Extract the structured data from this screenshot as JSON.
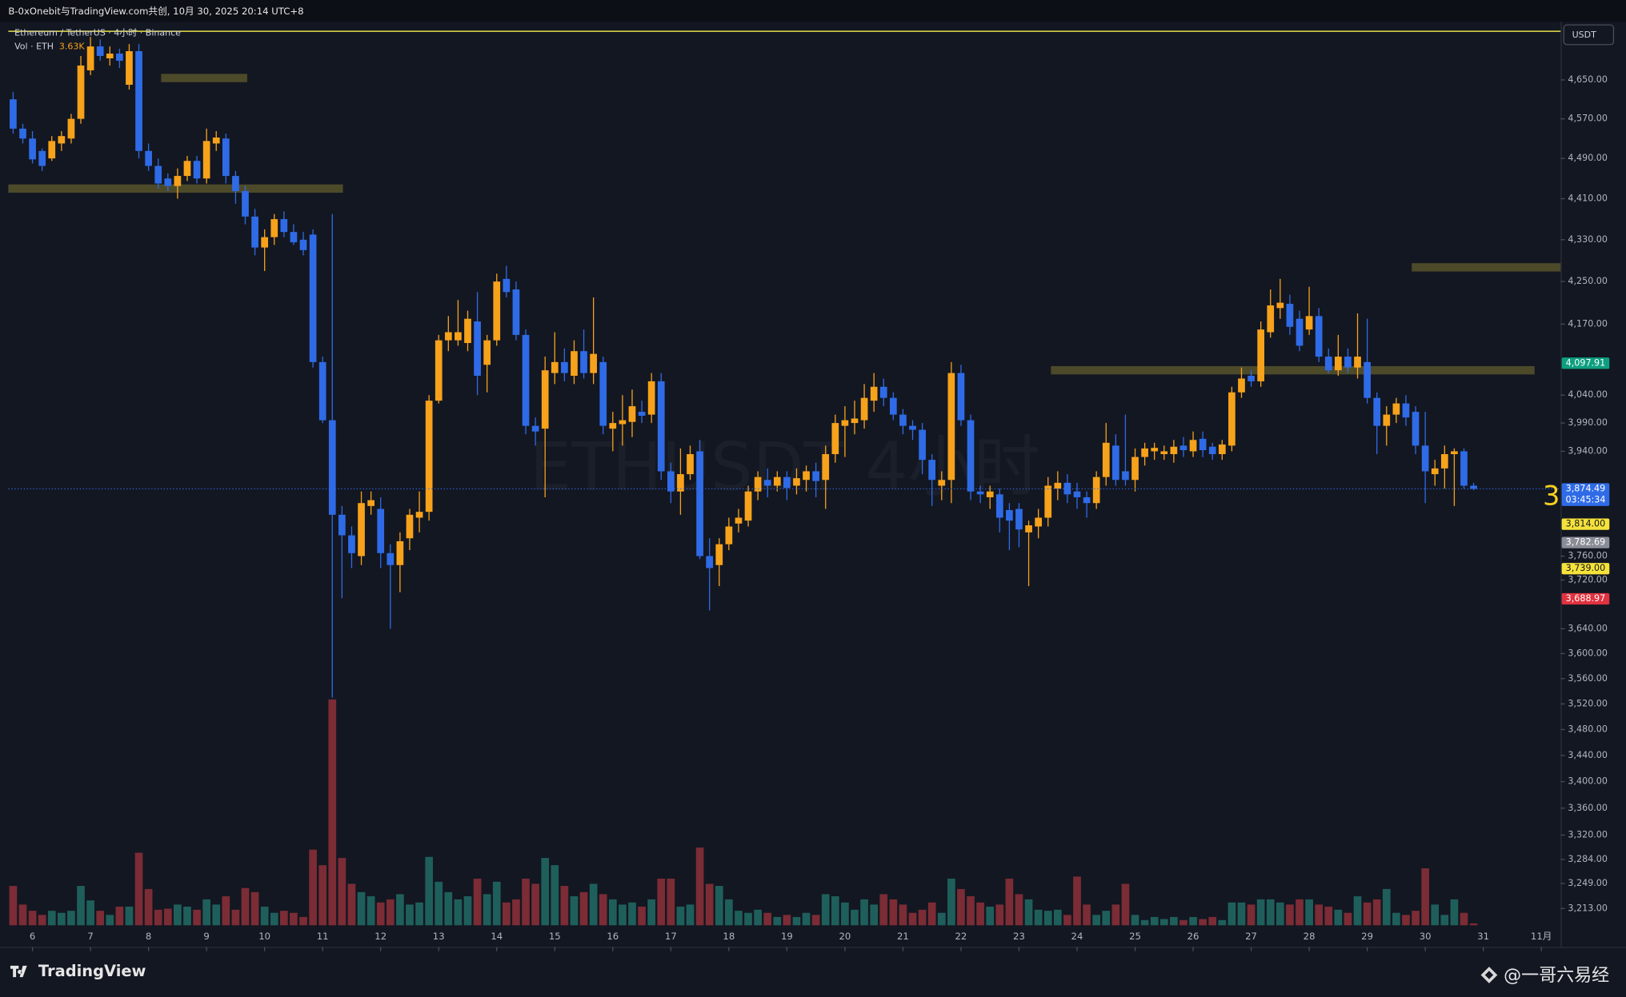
{
  "header": "B-0xOnebit与TradingView.com共创, 10月 30, 2025 20:14 UTC+8",
  "footer": {
    "brand": "TradingView",
    "watermark": "@一哥六易经"
  },
  "chart_data": {
    "type": "candlestick",
    "title": "Ethereum / TetherUS · 4小时 · Binance",
    "symbol_watermark": "ETHUSDT 4小时",
    "currency": "USDT",
    "marker_text": "3",
    "log_scale": true,
    "grid": false,
    "up_color": "#f7a21b",
    "down_color": "#2f6be6",
    "ylim": [
      3189,
      4770
    ],
    "xlim": [
      -0.5,
      160
    ],
    "yticks": [
      {
        "value": 4650,
        "label": "4,650.00"
      },
      {
        "value": 4570,
        "label": "4,570.00"
      },
      {
        "value": 4490,
        "label": "4,490.00"
      },
      {
        "value": 4410,
        "label": "4,410.00"
      },
      {
        "value": 4330,
        "label": "4,330.00"
      },
      {
        "value": 4250,
        "label": "4,250.00"
      },
      {
        "value": 4170,
        "label": "4,170.00"
      },
      {
        "value": 4040,
        "label": "4,040.00"
      },
      {
        "value": 3990,
        "label": "3,990.00"
      },
      {
        "value": 3940,
        "label": "3,940.00"
      },
      {
        "value": 3760,
        "label": "3,760.00"
      },
      {
        "value": 3720,
        "label": "3,720.00"
      },
      {
        "value": 3640,
        "label": "3,640.00"
      },
      {
        "value": 3600,
        "label": "3,600.00"
      },
      {
        "value": 3560,
        "label": "3,560.00"
      },
      {
        "value": 3520,
        "label": "3,520.00"
      },
      {
        "value": 3480,
        "label": "3,480.00"
      },
      {
        "value": 3440,
        "label": "3,440.00"
      },
      {
        "value": 3400,
        "label": "3,400.00"
      },
      {
        "value": 3360,
        "label": "3,360.00"
      },
      {
        "value": 3320,
        "label": "3,320.00"
      },
      {
        "value": 3284,
        "label": "3,284.00"
      },
      {
        "value": 3249,
        "label": "3,249.00"
      },
      {
        "value": 3213,
        "label": "3,213.00"
      }
    ],
    "xticks": [
      {
        "value": 2,
        "label": "6"
      },
      {
        "value": 8,
        "label": "7"
      },
      {
        "value": 14,
        "label": "8"
      },
      {
        "value": 20,
        "label": "9"
      },
      {
        "value": 26,
        "label": "10"
      },
      {
        "value": 32,
        "label": "11"
      },
      {
        "value": 38,
        "label": "12"
      },
      {
        "value": 44,
        "label": "13"
      },
      {
        "value": 50,
        "label": "14"
      },
      {
        "value": 56,
        "label": "15"
      },
      {
        "value": 62,
        "label": "16"
      },
      {
        "value": 68,
        "label": "17"
      },
      {
        "value": 74,
        "label": "18"
      },
      {
        "value": 80,
        "label": "19"
      },
      {
        "value": 86,
        "label": "20"
      },
      {
        "value": 92,
        "label": "21"
      },
      {
        "value": 98,
        "label": "22"
      },
      {
        "value": 104,
        "label": "23"
      },
      {
        "value": 110,
        "label": "24"
      },
      {
        "value": 116,
        "label": "25"
      },
      {
        "value": 122,
        "label": "26"
      },
      {
        "value": 128,
        "label": "27"
      },
      {
        "value": 134,
        "label": "28"
      },
      {
        "value": 140,
        "label": "29"
      },
      {
        "value": 146,
        "label": "30"
      },
      {
        "value": 152,
        "label": "31"
      },
      {
        "value": 158,
        "label": "11月"
      }
    ],
    "candles": [
      [
        4610,
        4625,
        4540,
        4550
      ],
      [
        4550,
        4560,
        4520,
        4530
      ],
      [
        4530,
        4545,
        4480,
        4488
      ],
      [
        4505,
        4510,
        4465,
        4475
      ],
      [
        4490,
        4535,
        4485,
        4525
      ],
      [
        4520,
        4545,
        4505,
        4535
      ],
      [
        4530,
        4580,
        4520,
        4570
      ],
      [
        4570,
        4700,
        4560,
        4680
      ],
      [
        4670,
        4740,
        4660,
        4720
      ],
      [
        4720,
        4735,
        4690,
        4700
      ],
      [
        4695,
        4720,
        4680,
        4705
      ],
      [
        4705,
        4715,
        4675,
        4690
      ],
      [
        4640,
        4725,
        4630,
        4710
      ],
      [
        4710,
        4725,
        4490,
        4505
      ],
      [
        4505,
        4520,
        4465,
        4475
      ],
      [
        4475,
        4490,
        4430,
        4440
      ],
      [
        4450,
        4460,
        4425,
        4435
      ],
      [
        4435,
        4470,
        4410,
        4455
      ],
      [
        4455,
        4495,
        4445,
        4485
      ],
      [
        4485,
        4495,
        4440,
        4450
      ],
      [
        4450,
        4550,
        4440,
        4525
      ],
      [
        4520,
        4545,
        4505,
        4532
      ],
      [
        4530,
        4540,
        4440,
        4455
      ],
      [
        4455,
        4465,
        4400,
        4425
      ],
      [
        4425,
        4435,
        4360,
        4375
      ],
      [
        4375,
        4390,
        4300,
        4315
      ],
      [
        4315,
        4350,
        4270,
        4335
      ],
      [
        4335,
        4380,
        4320,
        4370
      ],
      [
        4370,
        4385,
        4335,
        4345
      ],
      [
        4345,
        4360,
        4320,
        4325
      ],
      [
        4330,
        4345,
        4300,
        4310
      ],
      [
        4340,
        4350,
        4090,
        4100
      ],
      [
        4100,
        4110,
        3990,
        3995
      ],
      [
        3995,
        4380,
        3530,
        3830
      ],
      [
        3830,
        3845,
        3690,
        3795
      ],
      [
        3795,
        3810,
        3740,
        3765
      ],
      [
        3760,
        3870,
        3745,
        3850
      ],
      [
        3845,
        3870,
        3830,
        3855
      ],
      [
        3840,
        3860,
        3740,
        3765
      ],
      [
        3765,
        3780,
        3640,
        3745
      ],
      [
        3745,
        3800,
        3700,
        3785
      ],
      [
        3790,
        3840,
        3770,
        3830
      ],
      [
        3825,
        3870,
        3800,
        3835
      ],
      [
        3835,
        4040,
        3820,
        4030
      ],
      [
        4030,
        4150,
        4025,
        4140
      ],
      [
        4140,
        4185,
        4120,
        4155
      ],
      [
        4140,
        4215,
        4130,
        4155
      ],
      [
        4135,
        4195,
        4120,
        4180
      ],
      [
        4175,
        4230,
        4040,
        4075
      ],
      [
        4095,
        4150,
        4045,
        4140
      ],
      [
        4140,
        4265,
        4130,
        4250
      ],
      [
        4255,
        4280,
        4220,
        4230
      ],
      [
        4235,
        4250,
        4140,
        4150
      ],
      [
        4150,
        4160,
        3970,
        3985
      ],
      [
        3985,
        4000,
        3950,
        3975
      ],
      [
        3980,
        4110,
        3860,
        4085
      ],
      [
        4080,
        4155,
        4060,
        4100
      ],
      [
        4100,
        4125,
        4065,
        4080
      ],
      [
        4075,
        4140,
        4060,
        4120
      ],
      [
        4120,
        4160,
        4070,
        4080
      ],
      [
        4080,
        4220,
        4060,
        4115
      ],
      [
        4100,
        4110,
        3970,
        3985
      ],
      [
        3980,
        4010,
        3940,
        3990
      ],
      [
        3988,
        4040,
        3950,
        3995
      ],
      [
        3992,
        4050,
        3965,
        4020
      ],
      [
        4010,
        4030,
        3990,
        4003
      ],
      [
        4005,
        4080,
        3990,
        4065
      ],
      [
        4065,
        4080,
        3890,
        3905
      ],
      [
        3905,
        3920,
        3850,
        3870
      ],
      [
        3870,
        3945,
        3830,
        3900
      ],
      [
        3900,
        3950,
        3890,
        3935
      ],
      [
        3940,
        3960,
        3755,
        3760
      ],
      [
        3760,
        3790,
        3670,
        3740
      ],
      [
        3745,
        3790,
        3710,
        3780
      ],
      [
        3780,
        3825,
        3770,
        3810
      ],
      [
        3815,
        3840,
        3800,
        3825
      ],
      [
        3820,
        3880,
        3810,
        3870
      ],
      [
        3870,
        3905,
        3855,
        3895
      ],
      [
        3890,
        3910,
        3860,
        3880
      ],
      [
        3880,
        3905,
        3870,
        3895
      ],
      [
        3895,
        3905,
        3855,
        3876
      ],
      [
        3880,
        3910,
        3865,
        3893
      ],
      [
        3890,
        3915,
        3870,
        3905
      ],
      [
        3905,
        3920,
        3860,
        3888
      ],
      [
        3890,
        3950,
        3840,
        3935
      ],
      [
        3935,
        4005,
        3920,
        3990
      ],
      [
        3985,
        4020,
        3930,
        3995
      ],
      [
        3990,
        4030,
        3970,
        3998
      ],
      [
        3995,
        4060,
        3980,
        4035
      ],
      [
        4030,
        4080,
        4010,
        4055
      ],
      [
        4055,
        4070,
        4020,
        4035
      ],
      [
        4035,
        4045,
        3995,
        4005
      ],
      [
        4005,
        4015,
        3970,
        3985
      ],
      [
        3985,
        3995,
        3960,
        3978
      ],
      [
        3978,
        3990,
        3900,
        3925
      ],
      [
        3925,
        3935,
        3845,
        3890
      ],
      [
        3880,
        3905,
        3855,
        3890
      ],
      [
        3890,
        4100,
        3850,
        4080
      ],
      [
        4080,
        4095,
        3985,
        3995
      ],
      [
        3995,
        4005,
        3855,
        3870
      ],
      [
        3870,
        3880,
        3850,
        3865
      ],
      [
        3860,
        3880,
        3840,
        3870
      ],
      [
        3865,
        3875,
        3800,
        3825
      ],
      [
        3838,
        3850,
        3770,
        3820
      ],
      [
        3840,
        3850,
        3775,
        3805
      ],
      [
        3800,
        3820,
        3710,
        3812
      ],
      [
        3810,
        3840,
        3790,
        3825
      ],
      [
        3825,
        3895,
        3810,
        3880
      ],
      [
        3875,
        3905,
        3855,
        3885
      ],
      [
        3885,
        3900,
        3850,
        3865
      ],
      [
        3870,
        3885,
        3840,
        3860
      ],
      [
        3860,
        3870,
        3825,
        3850
      ],
      [
        3850,
        3905,
        3840,
        3895
      ],
      [
        3895,
        3990,
        3880,
        3955
      ],
      [
        3950,
        3970,
        3880,
        3890
      ],
      [
        3905,
        4005,
        3880,
        3890
      ],
      [
        3890,
        3945,
        3870,
        3930
      ],
      [
        3930,
        3955,
        3915,
        3945
      ],
      [
        3940,
        3955,
        3925,
        3946
      ],
      [
        3935,
        3950,
        3925,
        3940
      ],
      [
        3935,
        3960,
        3920,
        3948
      ],
      [
        3950,
        3965,
        3930,
        3942
      ],
      [
        3940,
        3975,
        3930,
        3960
      ],
      [
        3962,
        3975,
        3930,
        3942
      ],
      [
        3948,
        3955,
        3925,
        3935
      ],
      [
        3935,
        3960,
        3925,
        3952
      ],
      [
        3950,
        4055,
        3940,
        4045
      ],
      [
        4045,
        4090,
        4035,
        4070
      ],
      [
        4075,
        4085,
        4055,
        4065
      ],
      [
        4065,
        4175,
        4055,
        4160
      ],
      [
        4155,
        4235,
        4145,
        4205
      ],
      [
        4200,
        4255,
        4180,
        4210
      ],
      [
        4208,
        4225,
        4150,
        4165
      ],
      [
        4180,
        4195,
        4120,
        4130
      ],
      [
        4160,
        4240,
        4150,
        4185
      ],
      [
        4185,
        4200,
        4100,
        4110
      ],
      [
        4110,
        4125,
        4080,
        4085
      ],
      [
        4085,
        4150,
        4075,
        4110
      ],
      [
        4110,
        4125,
        4080,
        4090
      ],
      [
        4090,
        4190,
        4070,
        4110
      ],
      [
        4100,
        4180,
        4025,
        4035
      ],
      [
        4035,
        4045,
        3935,
        3985
      ],
      [
        3985,
        4020,
        3950,
        4005
      ],
      [
        4005,
        4035,
        3990,
        4025
      ],
      [
        4025,
        4040,
        3985,
        4000
      ],
      [
        4010,
        4020,
        3935,
        3950
      ],
      [
        3950,
        4010,
        3850,
        3905
      ],
      [
        3900,
        3925,
        3880,
        3910
      ],
      [
        3910,
        3950,
        3875,
        3935
      ],
      [
        3935,
        3945,
        3845,
        3940
      ],
      [
        3940,
        3945,
        3875,
        3880
      ],
      [
        3880,
        3885,
        3872,
        3874.49
      ]
    ],
    "volume": {
      "name": "Vol · ETH",
      "up_color": "#1f5f5b",
      "down_color": "#7b2c35",
      "lim": [
        0,
        500
      ],
      "values": [
        76,
        40,
        28,
        20,
        28,
        24,
        28,
        76,
        48,
        28,
        20,
        36,
        36,
        140,
        70,
        30,
        32,
        40,
        36,
        30,
        50,
        40,
        56,
        30,
        72,
        64,
        36,
        24,
        28,
        24,
        16,
        146,
        116,
        436,
        130,
        80,
        64,
        56,
        44,
        50,
        60,
        40,
        44,
        132,
        84,
        64,
        50,
        56,
        90,
        60,
        84,
        44,
        50,
        90,
        80,
        130,
        116,
        76,
        56,
        64,
        80,
        60,
        50,
        40,
        44,
        36,
        50,
        90,
        90,
        36,
        40,
        150,
        80,
        76,
        50,
        28,
        24,
        30,
        24,
        16,
        20,
        16,
        24,
        20,
        60,
        56,
        44,
        30,
        50,
        40,
        60,
        50,
        40,
        24,
        30,
        44,
        24,
        90,
        70,
        56,
        44,
        36,
        40,
        90,
        60,
        50,
        30,
        28,
        30,
        20,
        94,
        40,
        20,
        28,
        40,
        80,
        20,
        10,
        16,
        12,
        16,
        10,
        16,
        12,
        16,
        10,
        44,
        44,
        40,
        50,
        50,
        44,
        40,
        50,
        50,
        40,
        36,
        30,
        24,
        56,
        44,
        50,
        70,
        24,
        20,
        28,
        110,
        40,
        20,
        50,
        24,
        3.63
      ],
      "value_labels": {
        "151": "3.63K"
      }
    },
    "zones": [
      {
        "value": 4654,
        "from": 15.3,
        "to": 24.2
      },
      {
        "value": 4430,
        "from": -0.5,
        "to": 34.1
      },
      {
        "value": 4085,
        "from": 107.3,
        "to": 157.3
      },
      {
        "value": 4277,
        "from": 144.6,
        "to": 160
      }
    ],
    "zone_color": "#4d4a2a",
    "hlines": [
      {
        "value": 4752,
        "color": "#e8e04a"
      }
    ],
    "price_labels": [
      {
        "value": 4097.91,
        "label": "4,097.91",
        "color": "#0e9f80",
        "text_color": "#ffffff"
      },
      {
        "value": 3874.49,
        "label": "3,874.49",
        "color": "#2f6be6",
        "text_color": "#ffffff",
        "countdown": "03:45:34"
      },
      {
        "value": 3814,
        "label": "3,814.00",
        "color": "#f5e23a",
        "text_color": "#131722"
      },
      {
        "value": 3782.69,
        "label": "3,782.69",
        "color": "#8a8d96",
        "text_color": "#ffffff"
      },
      {
        "value": 3739,
        "label": "3,739.00",
        "color": "#f5e23a",
        "text_color": "#131722"
      },
      {
        "value": 3688.97,
        "label": "3,688.97",
        "color": "#e0323f",
        "text_color": "#ffffff"
      }
    ]
  }
}
